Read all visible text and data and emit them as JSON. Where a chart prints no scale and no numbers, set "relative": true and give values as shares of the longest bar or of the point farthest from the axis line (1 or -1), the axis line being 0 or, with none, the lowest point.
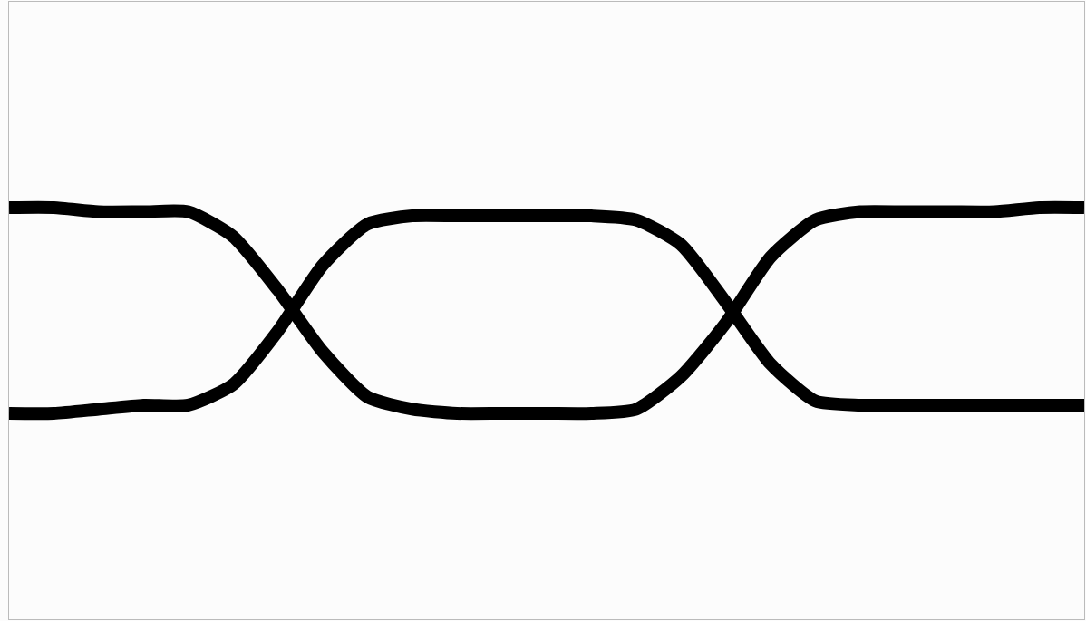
{
  "chart_data": {
    "type": "line",
    "relative": true,
    "categories": [
      null,
      null,
      null,
      null,
      null,
      null,
      null,
      null,
      null,
      null,
      null,
      null,
      null,
      null,
      null,
      null,
      null,
      null,
      null,
      null,
      null,
      null,
      null,
      null,
      null
    ],
    "series": [
      {
        "color": "#000000",
        "values": [
          1,
          1,
          0.99,
          0.99,
          0.99,
          0.93,
          0.8,
          0.65,
          0.54,
          0.51,
          0.5,
          0.5,
          0.5,
          0.5,
          0.51,
          0.59,
          0.72,
          0.88,
          0.97,
          0.99,
          0.99,
          0.99,
          0.99,
          1,
          1
        ]
      },
      {
        "color": "#000000",
        "values": [
          0.5,
          0.5,
          0.51,
          0.52,
          0.52,
          0.57,
          0.7,
          0.86,
          0.96,
          0.98,
          0.98,
          0.98,
          0.98,
          0.98,
          0.97,
          0.91,
          0.77,
          0.62,
          0.53,
          0.52,
          0.52,
          0.52,
          0.52,
          0.52,
          0.52
        ]
      }
    ]
  }
}
